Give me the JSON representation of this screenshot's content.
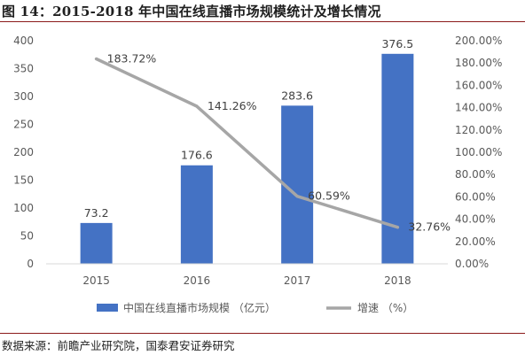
{
  "title": "图 14：2015-2018 年中国在线直播市场规模统计及增长情况",
  "source": "数据来源：前瞻产业研究院，国泰君安证券研究",
  "chart_data": {
    "type": "bar",
    "categories": [
      "2015",
      "2016",
      "2017",
      "2018"
    ],
    "series": [
      {
        "name": "中国在线直播市场规模 （亿元）",
        "type": "bar",
        "axis": "left",
        "color": "#4472c4",
        "values": [
          73.2,
          176.6,
          283.6,
          376.5
        ],
        "labels": [
          "73.2",
          "176.6",
          "283.6",
          "376.5"
        ]
      },
      {
        "name": "增速 （%）",
        "type": "line",
        "axis": "right",
        "color": "#a6a6a6",
        "values": [
          183.72,
          141.26,
          60.59,
          32.76
        ],
        "labels": [
          "183.72%",
          "141.26%",
          "60.59%",
          "32.76%"
        ]
      }
    ],
    "y_left": {
      "min": 0,
      "max": 400,
      "ticks": [
        "0",
        "50",
        "100",
        "150",
        "200",
        "250",
        "300",
        "350",
        "400"
      ]
    },
    "y_right": {
      "min": 0,
      "max": 200,
      "ticks": [
        "0.00%",
        "20.00%",
        "40.00%",
        "60.00%",
        "80.00%",
        "100.00%",
        "120.00%",
        "140.00%",
        "160.00%",
        "180.00%",
        "200.00%"
      ]
    },
    "grid": false,
    "legend_position": "bottom"
  }
}
